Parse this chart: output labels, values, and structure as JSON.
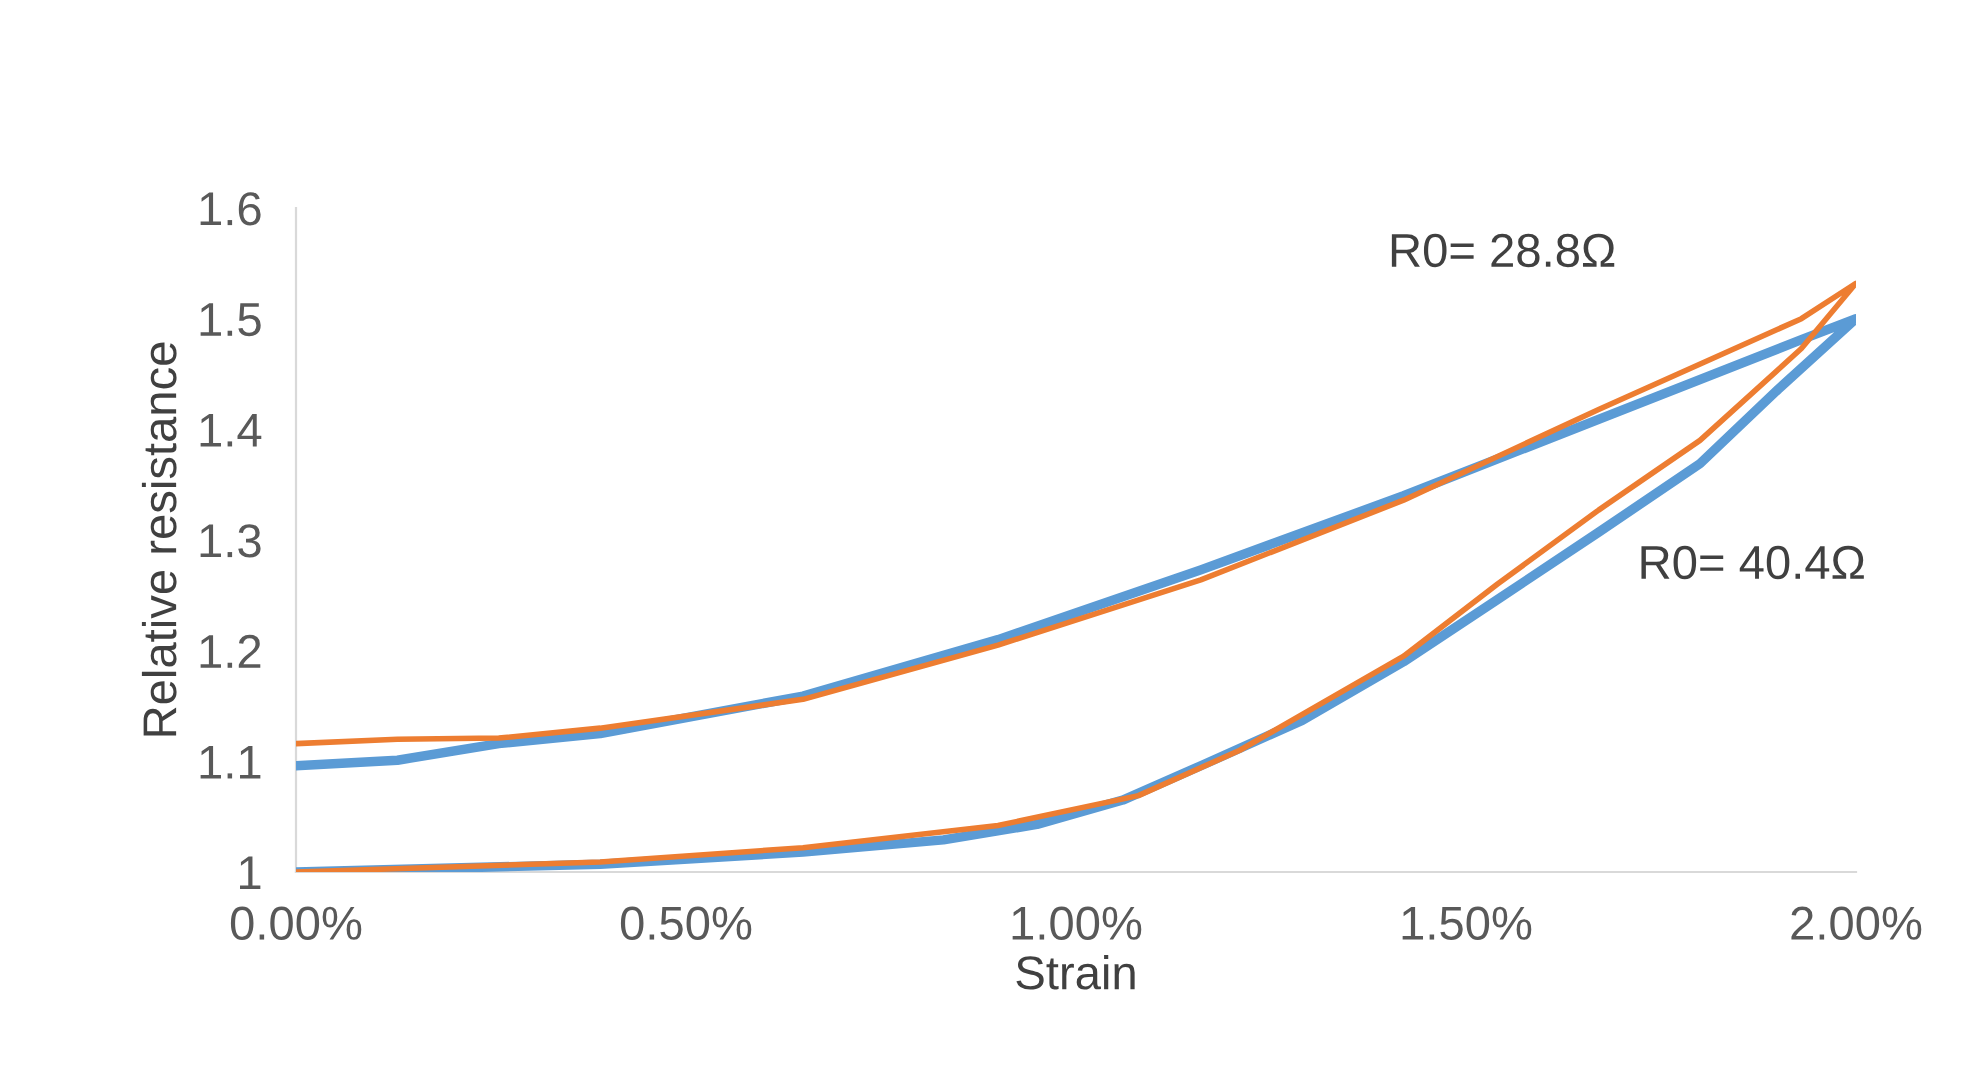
{
  "chart_data": {
    "type": "line",
    "xlabel": "Strain",
    "ylabel": "Relative resistance",
    "series": [
      {
        "color": "#5b9bd5",
        "x": [
          0,
          0.0039,
          0.0065,
          0.0083,
          0.0095,
          0.0106,
          0.0116,
          0.0129,
          0.0142,
          0.0154,
          0.0167,
          0.018,
          0.019,
          0.02,
          0.0193,
          0.0167,
          0.0142,
          0.0116,
          0.009,
          0.0065,
          0.0039,
          0.0026,
          0.0013,
          0
        ],
        "values": [
          1.0,
          1.007,
          1.018,
          1.029,
          1.043,
          1.065,
          1.096,
          1.137,
          1.19,
          1.246,
          1.307,
          1.369,
          1.436,
          1.5,
          1.481,
          1.409,
          1.34,
          1.273,
          1.21,
          1.159,
          1.125,
          1.116,
          1.101,
          1.096
        ]
      },
      {
        "color": "#ed7d31",
        "x": [
          0,
          0.0039,
          0.0065,
          0.009,
          0.0108,
          0.0121,
          0.0142,
          0.0154,
          0.0167,
          0.018,
          0.0193,
          0.02,
          0.0193,
          0.0167,
          0.0142,
          0.0116,
          0.009,
          0.0065,
          0.0039,
          0.0026,
          0.0013,
          0
        ],
        "values": [
          1.0,
          1.009,
          1.022,
          1.042,
          1.069,
          1.11,
          1.195,
          1.26,
          1.327,
          1.39,
          1.473,
          1.532,
          1.5,
          1.418,
          1.336,
          1.264,
          1.205,
          1.156,
          1.13,
          1.121,
          1.12,
          1.116
        ]
      }
    ],
    "xlim": [
      0,
      0.02
    ],
    "xticks": [
      {
        "value": 0,
        "label": "0.00%"
      },
      {
        "value": 0.005,
        "label": "0.50%"
      },
      {
        "value": 0.01,
        "label": "1.00%"
      },
      {
        "value": 0.015,
        "label": "1.50%"
      },
      {
        "value": 0.02,
        "label": "2.00%"
      }
    ],
    "ylim": [
      1,
      1.6
    ],
    "yticks": [
      {
        "value": 1,
        "label": "1"
      },
      {
        "value": 1.1,
        "label": "1.1"
      },
      {
        "value": 1.2,
        "label": "1.2"
      },
      {
        "value": 1.3,
        "label": "1.3"
      },
      {
        "value": 1.4,
        "label": "1.4"
      },
      {
        "value": 1.5,
        "label": "1.5"
      },
      {
        "value": 1.6,
        "label": "1.6"
      }
    ],
    "annotations": [
      "R0= 28.8Ω",
      "R0= 40.4Ω"
    ],
    "grid": false,
    "legend": false,
    "marker": "none",
    "line_style": "solid"
  }
}
